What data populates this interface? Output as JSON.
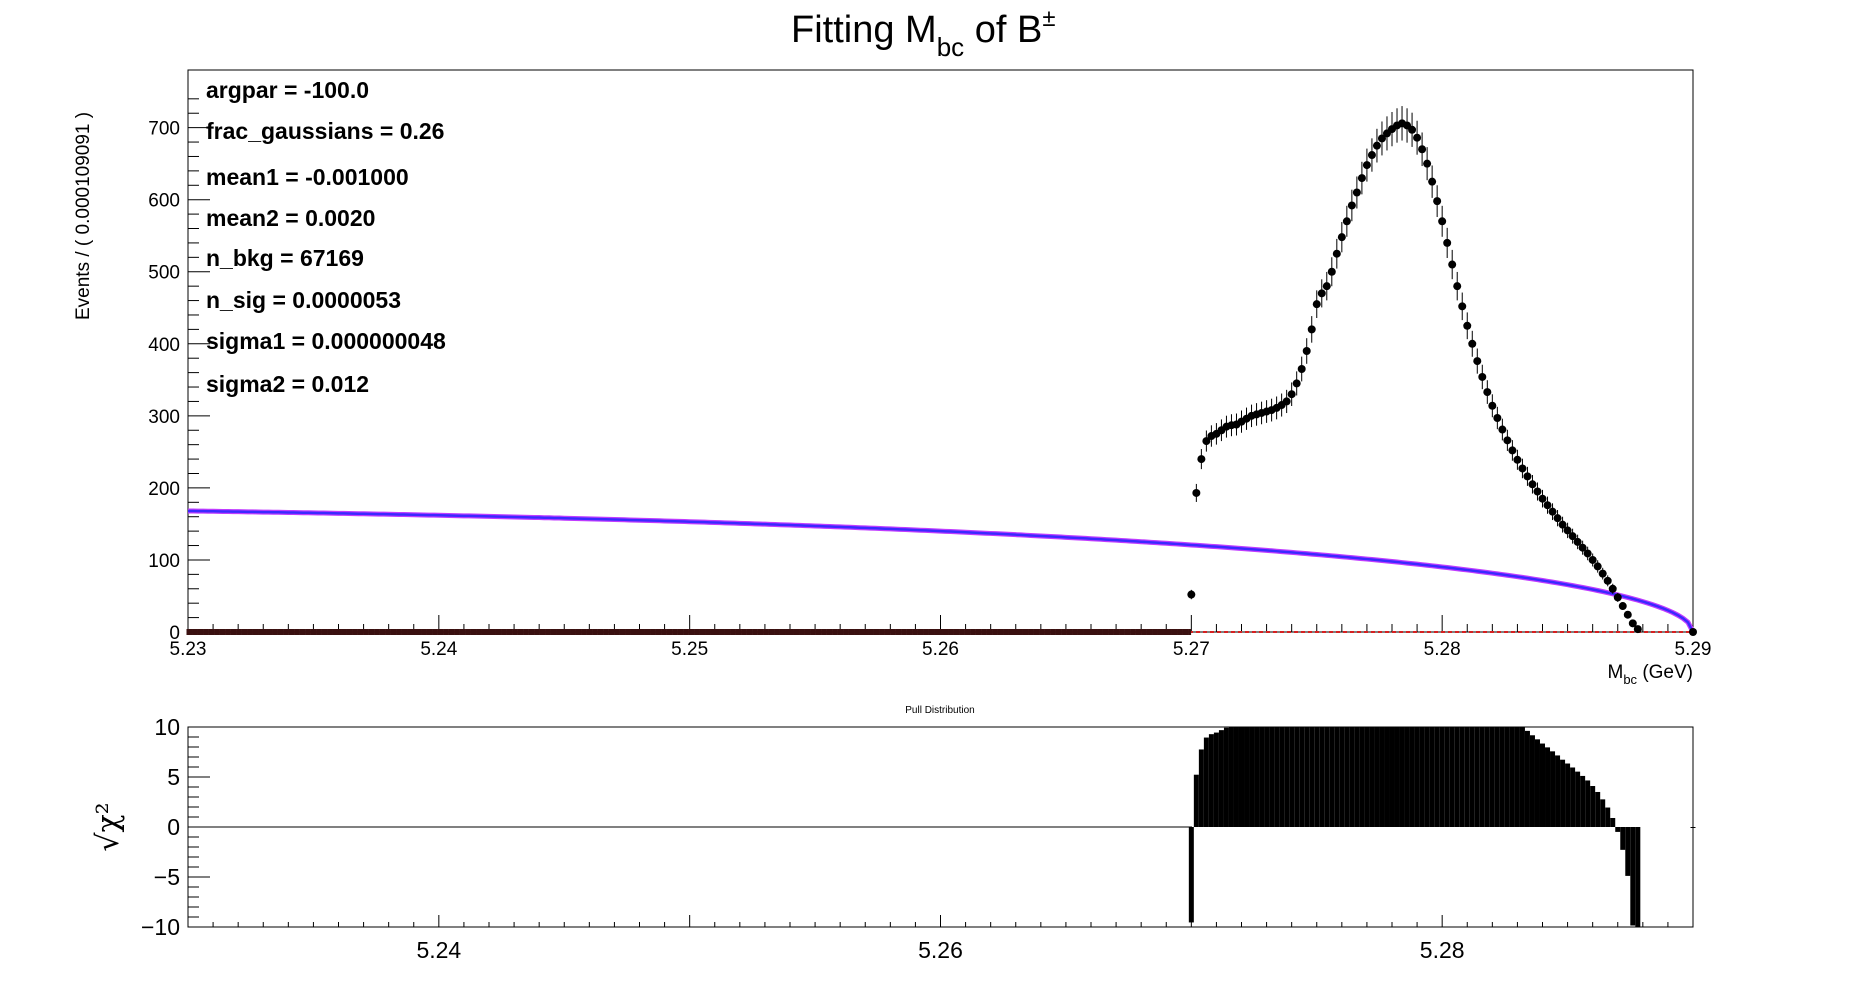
{
  "title": {
    "prefix": "Fitting M",
    "sub": "bc",
    "middle": " of B",
    "sup": "±"
  },
  "stats": [
    "argpar = -100.0",
    "frac_gaussians =  0.26",
    "mean1 = -0.001000",
    "mean2 =  0.0020",
    "n_bkg =  67169",
    "n_sig =  0.0000053",
    "sigma1 =  0.000000048",
    "sigma2 =  0.012"
  ],
  "pull_title": "Pull Distribution",
  "colors": {
    "data": "#000000",
    "total_fit": "#3b28ff",
    "background": "#c03cff",
    "signal": "#d62020"
  },
  "chart_data": [
    {
      "type": "scatter",
      "title": "Fitting Mbc of B±",
      "xlabel": {
        "main": "M",
        "sub": "bc",
        "unit": " (GeV)"
      },
      "ylabel": "Events / ( 0.000109091 )",
      "xlim": [
        5.23,
        5.29
      ],
      "ylim": [
        0,
        780
      ],
      "xticks": [
        "5.23",
        "5.24",
        "5.25",
        "5.26",
        "5.27",
        "5.28",
        "5.29"
      ],
      "yticks": [
        "0",
        "100",
        "200",
        "300",
        "400",
        "500",
        "600",
        "700"
      ],
      "series": [
        {
          "kind": "data_points_with_errors",
          "points": [
            [
              5.27,
              52
            ],
            [
              5.2702,
              193
            ],
            [
              5.2704,
              240
            ],
            [
              5.2706,
              265
            ],
            [
              5.2708,
              272
            ],
            [
              5.271,
              275
            ],
            [
              5.2712,
              280
            ],
            [
              5.2714,
              285
            ],
            [
              5.2716,
              287
            ],
            [
              5.2718,
              288
            ],
            [
              5.272,
              292
            ],
            [
              5.2722,
              296
            ],
            [
              5.2724,
              300
            ],
            [
              5.2726,
              302
            ],
            [
              5.2728,
              304
            ],
            [
              5.273,
              306
            ],
            [
              5.2732,
              308
            ],
            [
              5.2734,
              311
            ],
            [
              5.2736,
              315
            ],
            [
              5.2738,
              320
            ],
            [
              5.274,
              330
            ],
            [
              5.2742,
              345
            ],
            [
              5.2744,
              365
            ],
            [
              5.2746,
              390
            ],
            [
              5.2748,
              420
            ],
            [
              5.275,
              455
            ],
            [
              5.2752,
              470
            ],
            [
              5.2754,
              480
            ],
            [
              5.2756,
              500
            ],
            [
              5.2758,
              525
            ],
            [
              5.276,
              548
            ],
            [
              5.2762,
              570
            ],
            [
              5.2764,
              592
            ],
            [
              5.2766,
              610
            ],
            [
              5.2768,
              630
            ],
            [
              5.277,
              648
            ],
            [
              5.2772,
              662
            ],
            [
              5.2774,
              675
            ],
            [
              5.2776,
              685
            ],
            [
              5.2778,
              692
            ],
            [
              5.278,
              698
            ],
            [
              5.2782,
              703
            ],
            [
              5.2784,
              706
            ],
            [
              5.2786,
              703
            ],
            [
              5.2788,
              697
            ],
            [
              5.279,
              686
            ],
            [
              5.2792,
              670
            ],
            [
              5.2794,
              650
            ],
            [
              5.2796,
              625
            ],
            [
              5.2798,
              598
            ],
            [
              5.28,
              570
            ],
            [
              5.2802,
              540
            ],
            [
              5.2804,
              510
            ],
            [
              5.2806,
              480
            ],
            [
              5.2808,
              452
            ],
            [
              5.281,
              425
            ],
            [
              5.2812,
              400
            ],
            [
              5.2814,
              376
            ],
            [
              5.2816,
              354
            ],
            [
              5.2818,
              333
            ],
            [
              5.282,
              314
            ],
            [
              5.2822,
              297
            ],
            [
              5.2824,
              281
            ],
            [
              5.2826,
              266
            ],
            [
              5.2828,
              252
            ],
            [
              5.283,
              239
            ],
            [
              5.2832,
              227
            ],
            [
              5.2834,
              216
            ],
            [
              5.2836,
              205
            ],
            [
              5.2838,
              195
            ],
            [
              5.284,
              185
            ],
            [
              5.2842,
              176
            ],
            [
              5.2844,
              167
            ],
            [
              5.2846,
              158
            ],
            [
              5.2848,
              149
            ],
            [
              5.285,
              141
            ],
            [
              5.2852,
              133
            ],
            [
              5.2854,
              125
            ],
            [
              5.2856,
              117
            ],
            [
              5.2858,
              109
            ],
            [
              5.286,
              100
            ],
            [
              5.2862,
              91
            ],
            [
              5.2864,
              81
            ],
            [
              5.2866,
              71
            ],
            [
              5.2868,
              60
            ],
            [
              5.287,
              48
            ],
            [
              5.2872,
              36
            ],
            [
              5.2874,
              24
            ],
            [
              5.2876,
              12
            ],
            [
              5.2878,
              4
            ],
            [
              5.29,
              0
            ]
          ]
        },
        {
          "kind": "total_fit_curve",
          "color": "#3b28ff"
        },
        {
          "kind": "background_component",
          "color": "#c03cff"
        },
        {
          "kind": "signal_component",
          "color": "#d62020"
        }
      ]
    },
    {
      "type": "bar",
      "title": "Pull Distribution",
      "ylabel": "√χ²",
      "xlim": [
        5.23,
        5.29
      ],
      "ylim": [
        -10,
        10
      ],
      "xticks": [
        "5.24",
        "5.26",
        "5.28"
      ],
      "yticks": [
        "10",
        "5",
        "0",
        "−5",
        "−10"
      ]
    }
  ]
}
